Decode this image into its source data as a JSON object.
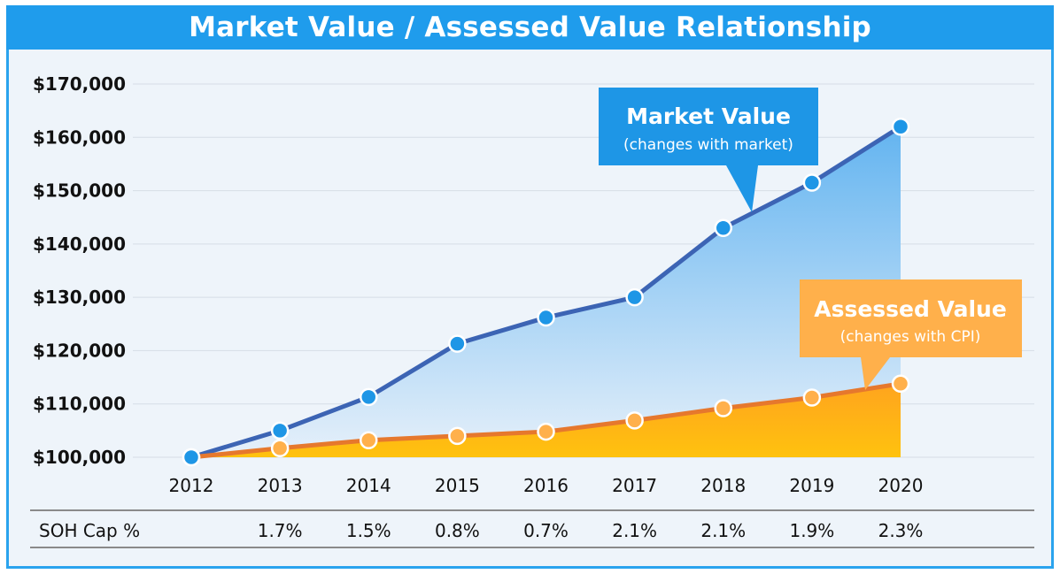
{
  "chart_data": {
    "type": "area",
    "title": "Market Value / Assessed Value Relationship",
    "categories": [
      "2012",
      "2013",
      "2014",
      "2015",
      "2016",
      "2017",
      "2018",
      "2019",
      "2020"
    ],
    "series": [
      {
        "name": "Market Value",
        "subtitle": "(changes with market)",
        "color": "#3c64b4",
        "marker_color": "#1e96e6",
        "fill_top": "#63b4f0",
        "fill_bottom": "#e6f0fa",
        "values": [
          100000,
          105000,
          111300,
          121300,
          126200,
          130000,
          143000,
          151500,
          162000
        ]
      },
      {
        "name": "Assessed Value",
        "subtitle": "(changes with CPI)",
        "color": "#e6782d",
        "marker_color": "#ffb04b",
        "fill_top": "#ffa41e",
        "fill_bottom": "#ffc20e",
        "values": [
          100000,
          101700,
          103200,
          104000,
          104800,
          106900,
          109200,
          111200,
          113800
        ]
      }
    ],
    "y_ticks": [
      "$100,000",
      "$110,000",
      "$120,000",
      "$130,000",
      "$140,000",
      "$150,000",
      "$160,000",
      "$170,000"
    ],
    "y_tick_values": [
      100000,
      110000,
      120000,
      130000,
      140000,
      150000,
      160000,
      170000
    ],
    "ylim": [
      100000,
      170000
    ],
    "xlabel": "",
    "ylabel": "",
    "grid": true,
    "table": {
      "label": "SOH Cap %",
      "values": [
        "",
        "1.7%",
        "1.5%",
        "0.8%",
        "0.7%",
        "2.1%",
        "2.1%",
        "1.9%",
        "2.3%"
      ]
    }
  }
}
